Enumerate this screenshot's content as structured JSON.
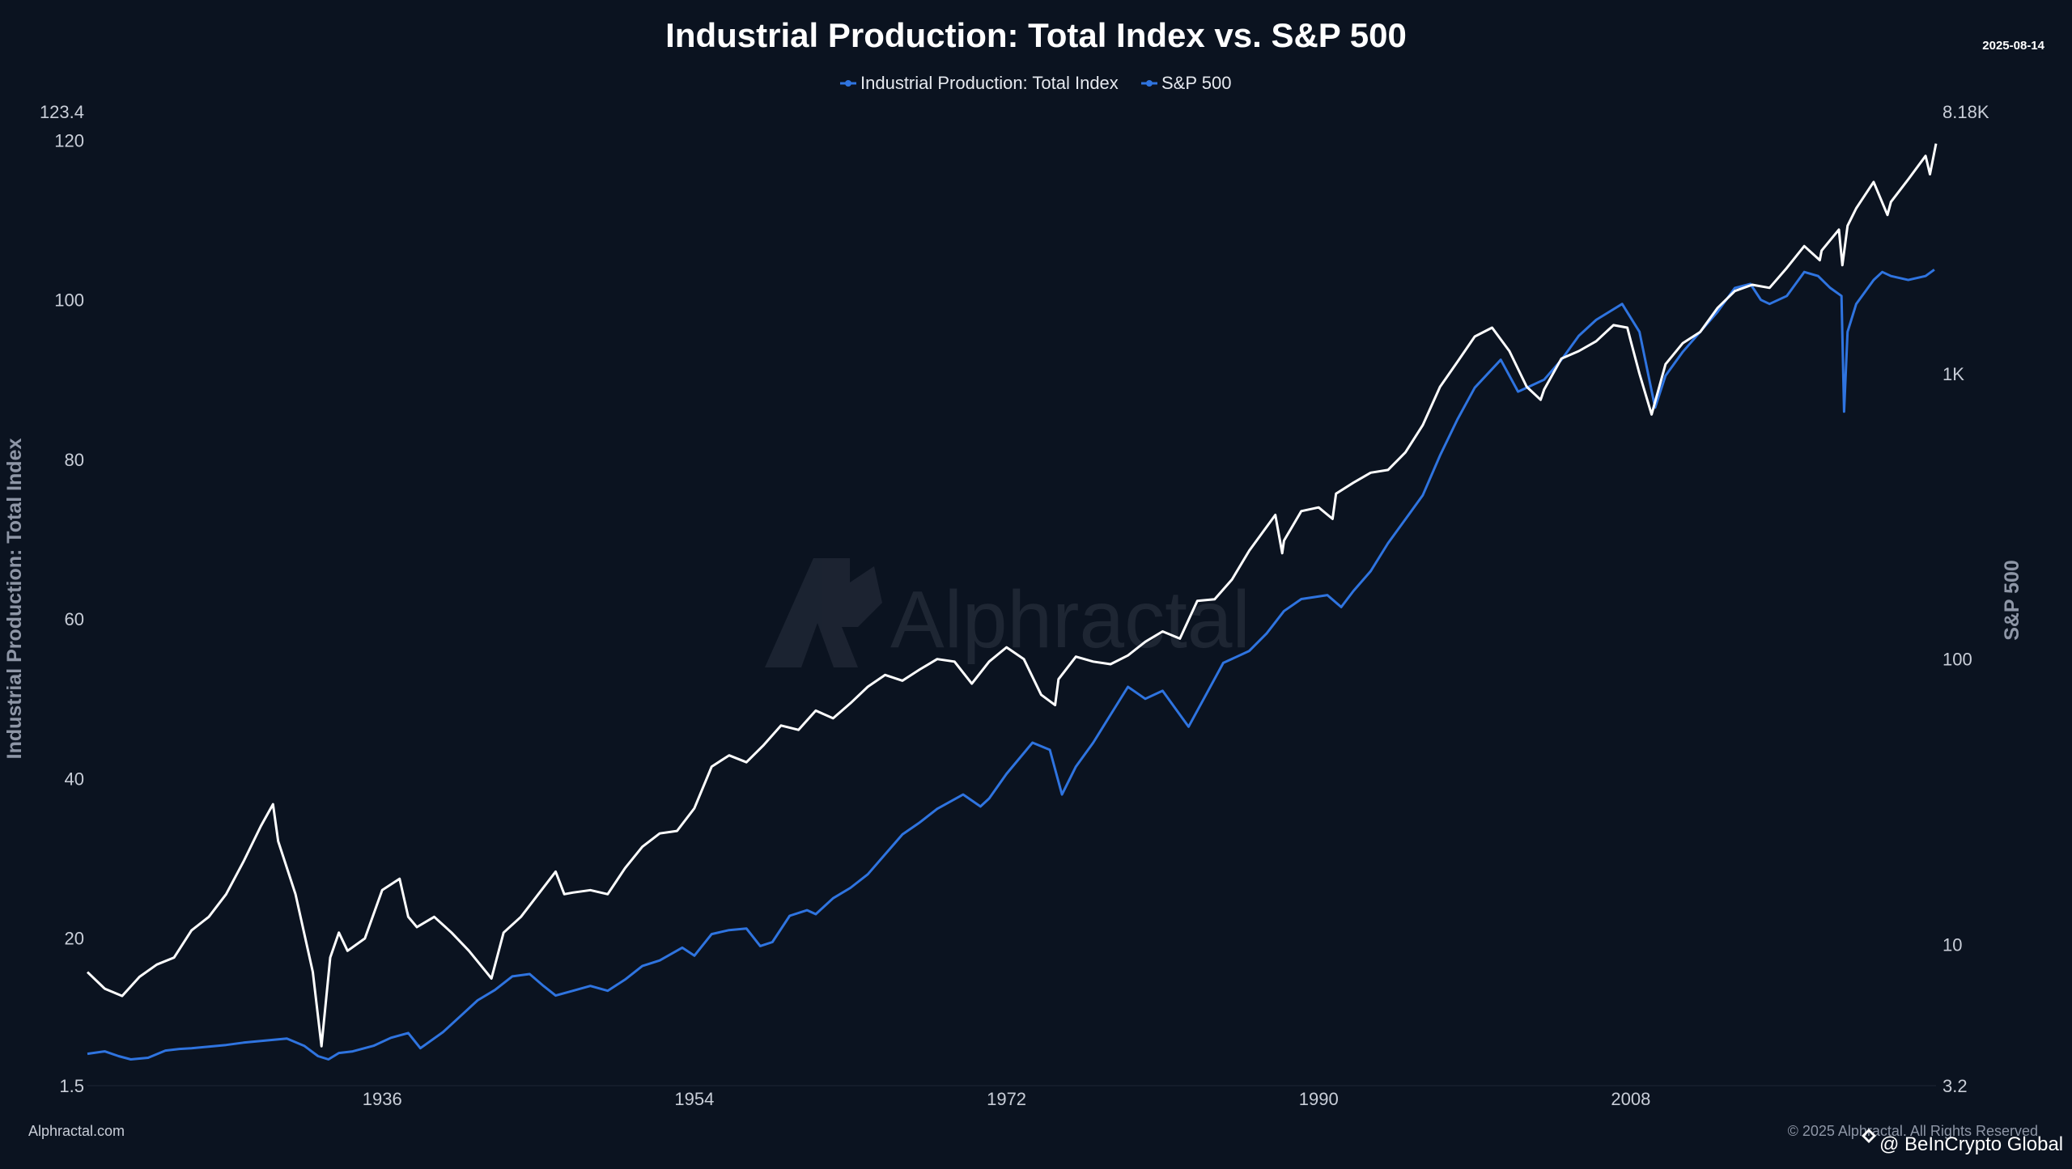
{
  "colors": {
    "background": "#0b1320",
    "industrial_line": "#2f74e0",
    "sp500_line": "#ffffff",
    "axis_text": "#c9ced8",
    "axis_title": "#8e96a6",
    "watermark": "#3a4150"
  },
  "header": {
    "title": "Industrial Production: Total Index vs. S&P 500",
    "date": "2025-08-14",
    "legend": [
      {
        "name": "Industrial Production: Total Index",
        "color": "#2f74e0"
      },
      {
        "name": "S&P 500",
        "color": "#2f74e0"
      }
    ]
  },
  "watermark": {
    "text": "Alphractal"
  },
  "footer": {
    "left": "Alphractal.com",
    "right": "© 2025 Alphractal. All Rights Reserved",
    "badge": "@ BeInCrypto Global"
  },
  "chart_data": {
    "type": "line",
    "title": "Industrial Production: Total Index vs. S&P 500",
    "xlabel": "",
    "ylabel": "Industrial Production: Total Index",
    "y2label": "S&P 500",
    "xlim": [
      1919,
      2025.6
    ],
    "ylim": [
      1.5,
      123.4
    ],
    "y2lim": [
      3.2,
      8180
    ],
    "y2scale": "log",
    "x_ticks": [
      1936,
      1954,
      1972,
      1990,
      2008
    ],
    "x_tick_labels": [
      "1936",
      "1954",
      "1972",
      "1990",
      "2008"
    ],
    "y_ticks": [
      1.5,
      20,
      40,
      60,
      80,
      100,
      120,
      123.4
    ],
    "y_tick_labels": [
      "1.5",
      "20",
      "40",
      "60",
      "80",
      "100",
      "120",
      "123.4"
    ],
    "y2_ticks": [
      3.2,
      10,
      100,
      1000,
      8180
    ],
    "y2_tick_labels": [
      "3.2",
      "10",
      "100",
      "1K",
      "8.18K"
    ],
    "grid": false,
    "series": [
      {
        "name": "Industrial Production: Total Index",
        "axis": "left",
        "x": [
          1919.0,
          1920.0,
          1920.8,
          1921.5,
          1922.5,
          1923.5,
          1924.3,
          1925.0,
          1926.0,
          1927.0,
          1928.0,
          1929.5,
          1930.5,
          1931.5,
          1932.3,
          1932.9,
          1933.5,
          1934.3,
          1935.5,
          1936.5,
          1937.5,
          1938.2,
          1939.5,
          1940.5,
          1941.5,
          1942.5,
          1943.5,
          1944.5,
          1945.3,
          1946.0,
          1947.0,
          1948.0,
          1949.0,
          1950.0,
          1951.0,
          1952.0,
          1953.3,
          1954.0,
          1955.0,
          1956.0,
          1957.0,
          1957.8,
          1958.5,
          1959.5,
          1960.5,
          1961.0,
          1962.0,
          1963.0,
          1964.0,
          1965.0,
          1966.0,
          1967.0,
          1968.0,
          1969.5,
          1970.5,
          1971.0,
          1972.0,
          1973.5,
          1974.5,
          1975.2,
          1976.0,
          1977.0,
          1978.0,
          1979.0,
          1980.0,
          1981.0,
          1982.5,
          1983.5,
          1984.5,
          1985.0,
          1986.0,
          1987.0,
          1988.0,
          1989.0,
          1990.5,
          1991.3,
          1992.0,
          1993.0,
          1994.0,
          1995.0,
          1996.0,
          1997.0,
          1998.0,
          1999.0,
          2000.5,
          2001.5,
          2002.0,
          2003.0,
          2004.0,
          2005.0,
          2006.0,
          2007.5,
          2008.5,
          2009.4,
          2010.0,
          2011.0,
          2012.0,
          2013.0,
          2014.0,
          2014.9,
          2015.5,
          2016.0,
          2017.0,
          2018.0,
          2018.8,
          2019.5,
          2020.15,
          2020.3,
          2020.5,
          2021.0,
          2022.0,
          2022.5,
          2023.0,
          2024.0,
          2025.0,
          2025.5
        ],
        "values": [
          5.5,
          5.8,
          5.2,
          4.8,
          5.0,
          5.9,
          6.1,
          6.2,
          6.4,
          6.6,
          6.9,
          7.2,
          7.4,
          6.5,
          5.2,
          4.8,
          5.6,
          5.8,
          6.5,
          7.5,
          8.1,
          6.2,
          8.2,
          10.2,
          12.2,
          13.5,
          15.2,
          15.5,
          14.0,
          12.8,
          13.4,
          14.0,
          13.4,
          14.8,
          16.5,
          17.2,
          18.8,
          17.8,
          20.5,
          21.0,
          21.2,
          19.0,
          19.5,
          22.8,
          23.5,
          23.0,
          25.0,
          26.3,
          28.0,
          30.5,
          33.0,
          34.5,
          36.2,
          38.0,
          36.5,
          37.5,
          40.6,
          44.5,
          43.6,
          38.0,
          41.5,
          44.5,
          48.0,
          51.5,
          50.0,
          51.0,
          46.5,
          50.5,
          54.5,
          55.0,
          56.0,
          58.2,
          61.0,
          62.5,
          63.0,
          61.5,
          63.5,
          66.0,
          69.5,
          72.5,
          75.5,
          80.5,
          85.0,
          89.0,
          92.5,
          88.5,
          89.0,
          90.0,
          92.5,
          95.5,
          97.5,
          99.5,
          96.0,
          86.5,
          90.5,
          93.5,
          96.0,
          98.5,
          101.5,
          102.0,
          100.0,
          99.5,
          100.5,
          103.5,
          103.0,
          101.5,
          100.5,
          86.0,
          96.0,
          99.5,
          102.5,
          103.5,
          103.0,
          102.5,
          103.0,
          103.8
        ]
      },
      {
        "name": "S&P 500",
        "axis": "right",
        "x": [
          1919.0,
          1920.0,
          1921.0,
          1922.0,
          1923.0,
          1924.0,
          1925.0,
          1926.0,
          1927.0,
          1928.0,
          1929.0,
          1929.7,
          1930.0,
          1931.0,
          1932.0,
          1932.5,
          1933.0,
          1933.5,
          1934.0,
          1935.0,
          1936.0,
          1937.0,
          1937.5,
          1938.0,
          1939.0,
          1940.0,
          1941.0,
          1942.0,
          1942.3,
          1943.0,
          1944.0,
          1945.0,
          1946.0,
          1946.5,
          1947.0,
          1948.0,
          1949.0,
          1950.0,
          1951.0,
          1952.0,
          1953.0,
          1954.0,
          1955.0,
          1956.0,
          1957.0,
          1958.0,
          1959.0,
          1960.0,
          1961.0,
          1962.0,
          1963.0,
          1964.0,
          1965.0,
          1966.0,
          1967.0,
          1968.0,
          1969.0,
          1970.0,
          1971.0,
          1972.0,
          1973.0,
          1974.0,
          1974.8,
          1975.0,
          1976.0,
          1977.0,
          1978.0,
          1979.0,
          1980.0,
          1981.0,
          1982.0,
          1983.0,
          1984.0,
          1985.0,
          1986.0,
          1987.5,
          1987.9,
          1988.0,
          1989.0,
          1990.0,
          1990.8,
          1991.0,
          1992.0,
          1993.0,
          1994.0,
          1995.0,
          1996.0,
          1997.0,
          1998.0,
          1999.0,
          2000.0,
          2001.0,
          2002.0,
          2002.8,
          2003.0,
          2004.0,
          2005.0,
          2006.0,
          2007.0,
          2007.8,
          2008.0,
          2008.5,
          2009.2,
          2010.0,
          2011.0,
          2012.0,
          2013.0,
          2014.0,
          2015.0,
          2016.0,
          2017.0,
          2018.0,
          2018.9,
          2019.0,
          2020.0,
          2020.2,
          2020.5,
          2021.0,
          2022.0,
          2022.8,
          2023.0,
          2024.0,
          2025.0,
          2025.25,
          2025.6
        ],
        "values": [
          8.0,
          7.0,
          6.6,
          7.7,
          8.5,
          9.0,
          11.2,
          12.5,
          15.0,
          19.5,
          26.0,
          31.0,
          23.0,
          15.0,
          8.0,
          4.4,
          9.0,
          11.0,
          9.5,
          10.5,
          15.5,
          17.0,
          12.5,
          11.5,
          12.5,
          11.0,
          9.5,
          8.0,
          7.6,
          11.0,
          12.5,
          15.0,
          18.0,
          15.0,
          15.2,
          15.5,
          15.0,
          18.5,
          22.0,
          24.5,
          25.0,
          30.0,
          42.0,
          46.0,
          43.5,
          50.0,
          58.5,
          56.5,
          66.0,
          62.0,
          70.0,
          80.0,
          88.0,
          84.0,
          92.0,
          100.0,
          98.0,
          82.0,
          98.0,
          110.0,
          100.0,
          75.0,
          69.0,
          85.0,
          102.0,
          98.0,
          96.0,
          103.0,
          115.0,
          125.0,
          118.0,
          160.0,
          162.0,
          190.0,
          240.0,
          320.0,
          235.0,
          260.0,
          330.0,
          340.0,
          310.0,
          380.0,
          415.0,
          450.0,
          460.0,
          530.0,
          660.0,
          900.0,
          1100.0,
          1350.0,
          1450.0,
          1200.0,
          900.0,
          810.0,
          880.0,
          1130.0,
          1200.0,
          1300.0,
          1480.0,
          1450.0,
          1300.0,
          1000.0,
          720.0,
          1080.0,
          1280.0,
          1400.0,
          1700.0,
          1950.0,
          2050.0,
          2000.0,
          2350.0,
          2800.0,
          2500.0,
          2700.0,
          3200.0,
          2400.0,
          3300.0,
          3800.0,
          4700.0,
          3600.0,
          4000.0,
          4800.0,
          5800.0,
          5000.0,
          6400.0
        ]
      }
    ]
  }
}
